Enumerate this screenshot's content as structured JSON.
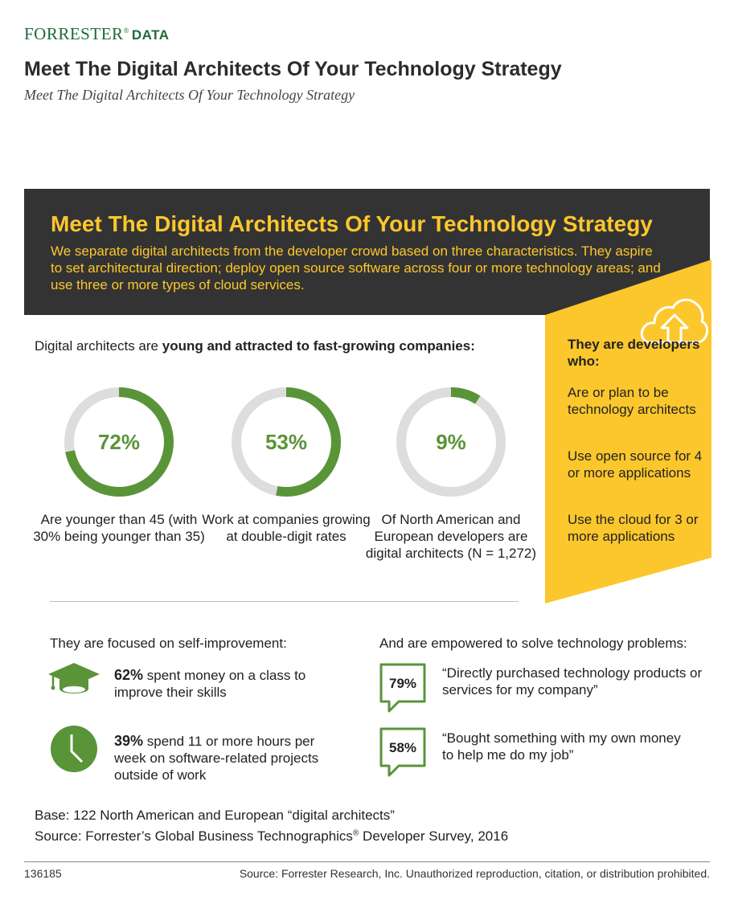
{
  "header": {
    "brand": "FORRESTER",
    "brand_mark": "®",
    "brand_suffix": "DATA",
    "title": "Meet The Digital Architects Of Your Technology Strategy",
    "subtitle": "Meet The Digital Architects Of Your Technology Strategy"
  },
  "banner": {
    "title": "Meet The Digital Architects Of Your Technology Strategy",
    "text": "We separate digital architects from the developer crowd based on three characteristics. They aspire to set architectural direction; deploy open source software across four or more technology areas; and use three or more types of cloud services."
  },
  "sidebar": {
    "heading": "They are developers who:",
    "items": [
      "Are or plan to be technology architects",
      "Use open source for 4 or more applications",
      "Use the cloud for 3 or more applications"
    ],
    "icon": "cloud-upload-icon"
  },
  "young": {
    "heading_prefix": "Digital architects are ",
    "heading_bold": "young and attracted to fast-growing companies:",
    "donuts": [
      {
        "value": "72%",
        "fraction": 0.72,
        "label": "Are younger than 45 (with 30% being younger than 35)"
      },
      {
        "value": "53%",
        "fraction": 0.53,
        "label": "Work at companies growing at double-digit rates"
      },
      {
        "value": "9%",
        "fraction": 0.09,
        "label": "Of North American and European developers are digital architects (N = 1,272)"
      }
    ]
  },
  "self_improvement": {
    "heading": "They are focused on self-improvement:",
    "items": [
      {
        "icon": "graduation-cap-icon",
        "pct": "62%",
        "text": " spent money on a class to improve their skills"
      },
      {
        "icon": "clock-icon",
        "pct": "39%",
        "text": " spend 11 or more hours per week on software-related projects outside of work"
      }
    ]
  },
  "empowered": {
    "heading": "And are empowered to solve technology problems:",
    "items": [
      {
        "pct": "79%",
        "quote": "“Directly purchased technology products or services for my company”"
      },
      {
        "pct": "58%",
        "quote": "“Bought something with my own money to help me do my job”"
      }
    ]
  },
  "base": {
    "line1": "Base: 122 North American and European “digital architects”",
    "line2_prefix": "Source: Forrester’s Global Business Technographics",
    "line2_mark": "®",
    "line2_suffix": " Developer Survey, 2016"
  },
  "footer": {
    "code": "136185",
    "copyright": "Source: Forrester Research, Inc. Unauthorized reproduction, citation, or distribution prohibited."
  },
  "colors": {
    "green": "#5a9438",
    "yellow": "#fcc72c",
    "dark": "#333333",
    "ring_track": "#dddddd",
    "brand_green": "#1c6a3a"
  }
}
